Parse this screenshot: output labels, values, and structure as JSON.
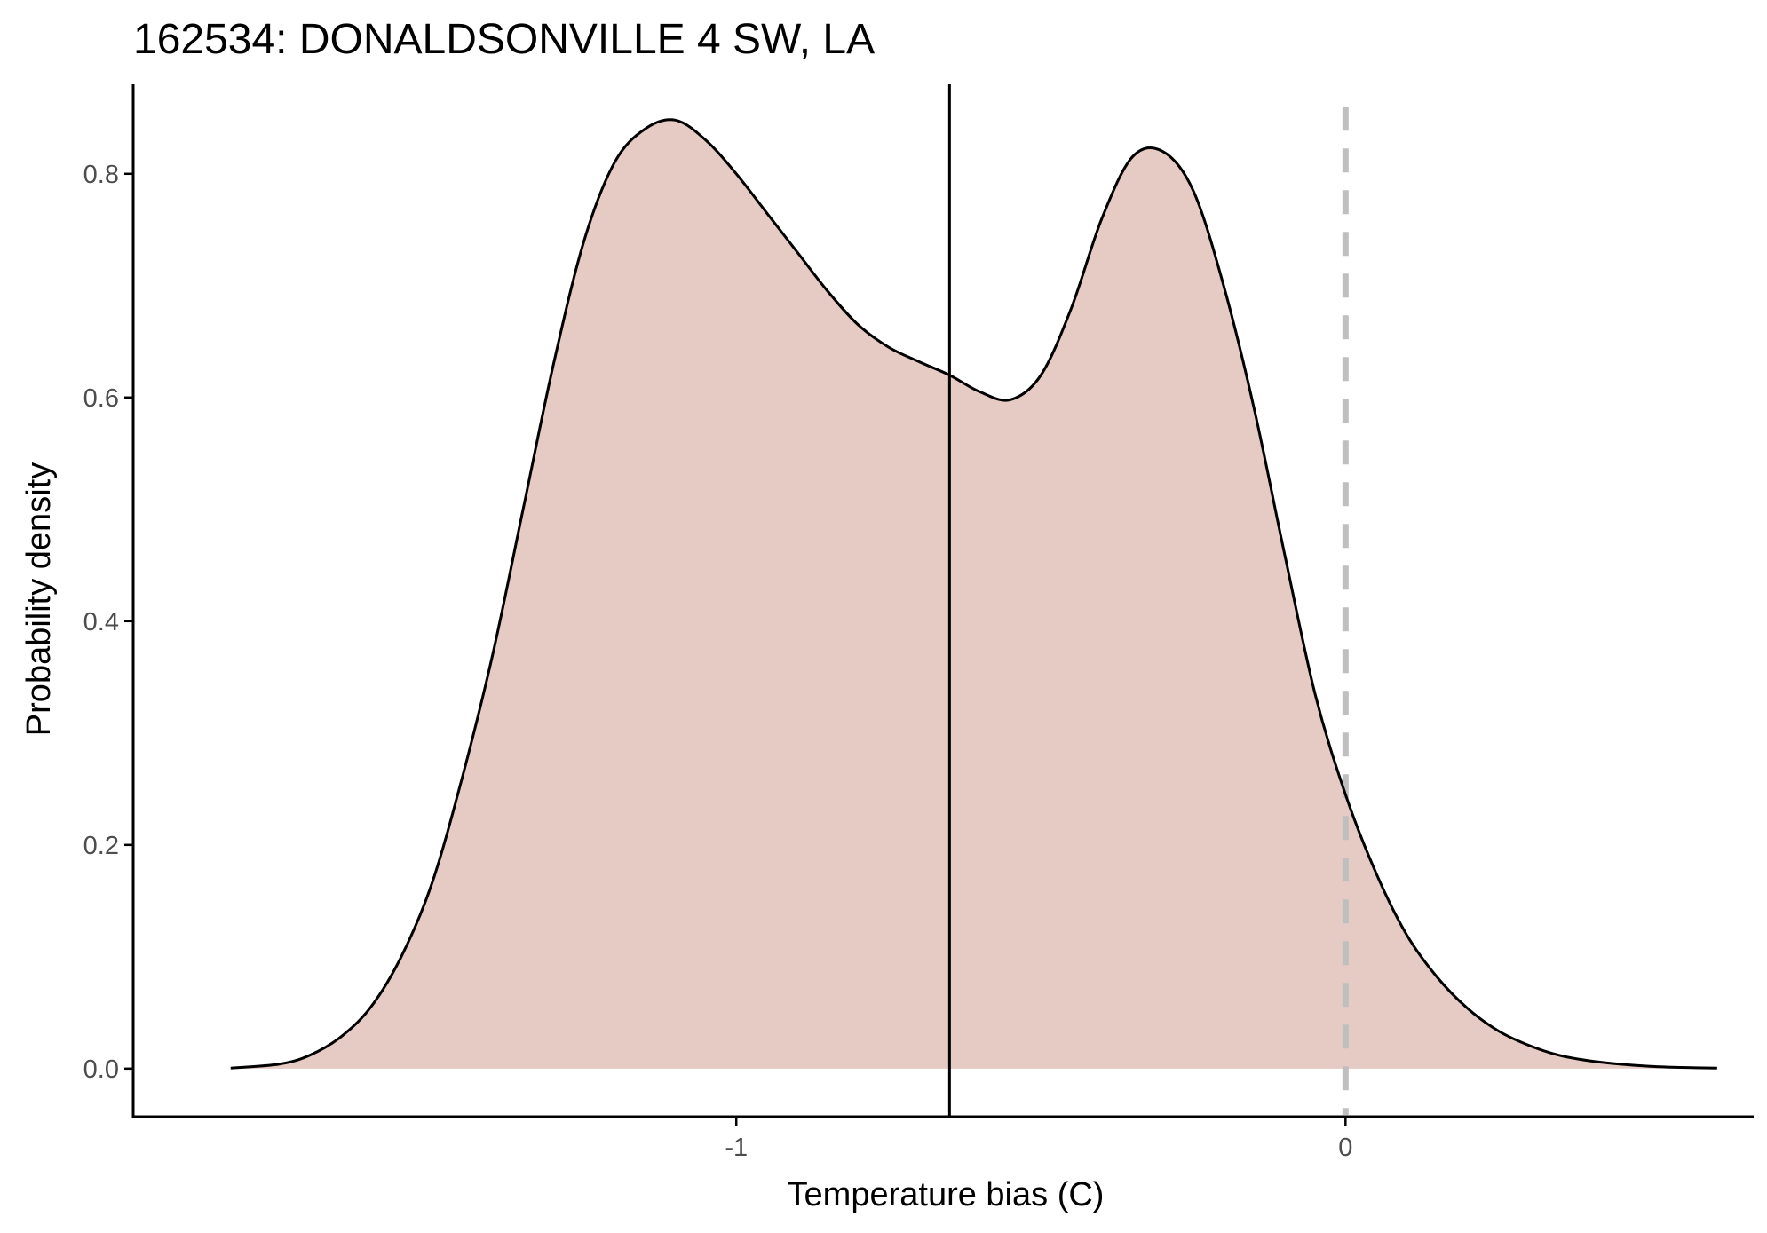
{
  "chart_data": {
    "type": "area",
    "title": "162534: DONALDSONVILLE 4 SW, LA",
    "xlabel": "Temperature bias (C)",
    "ylabel": "Probability density",
    "xlim": [
      -1.99,
      0.67
    ],
    "ylim": [
      -0.043,
      0.88
    ],
    "x_ticks": [
      {
        "value": -1,
        "label": "-1"
      },
      {
        "value": 0,
        "label": "0"
      }
    ],
    "y_ticks": [
      {
        "value": 0.0,
        "label": "0.0"
      },
      {
        "value": 0.2,
        "label": "0.2"
      },
      {
        "value": 0.4,
        "label": "0.4"
      },
      {
        "value": 0.6,
        "label": "0.6"
      },
      {
        "value": 0.8,
        "label": "0.8"
      }
    ],
    "grid": false,
    "legend": "none",
    "series": [
      {
        "x": [
          -1.83,
          -1.75,
          -1.7,
          -1.65,
          -1.6,
          -1.55,
          -1.5,
          -1.45,
          -1.4,
          -1.35,
          -1.3,
          -1.25,
          -1.2,
          -1.15,
          -1.1,
          -1.05,
          -1.0,
          -0.95,
          -0.9,
          -0.85,
          -0.8,
          -0.75,
          -0.7,
          -0.65,
          -0.6,
          -0.55,
          -0.5,
          -0.45,
          -0.4,
          -0.35,
          -0.3,
          -0.25,
          -0.2,
          -0.15,
          -0.1,
          -0.05,
          0.0,
          0.05,
          0.1,
          0.15,
          0.2,
          0.25,
          0.3,
          0.35,
          0.4,
          0.45,
          0.5,
          0.55,
          0.61
        ],
        "y": [
          0.0005,
          0.004,
          0.012,
          0.028,
          0.055,
          0.1,
          0.165,
          0.26,
          0.37,
          0.5,
          0.63,
          0.74,
          0.81,
          0.84,
          0.848,
          0.83,
          0.8,
          0.765,
          0.73,
          0.695,
          0.665,
          0.645,
          0.632,
          0.62,
          0.605,
          0.598,
          0.62,
          0.68,
          0.76,
          0.815,
          0.82,
          0.785,
          0.7,
          0.59,
          0.46,
          0.335,
          0.245,
          0.175,
          0.12,
          0.082,
          0.054,
          0.034,
          0.021,
          0.012,
          0.007,
          0.004,
          0.002,
          0.001,
          0.0005
        ]
      }
    ],
    "vlines": [
      {
        "x": -0.65,
        "style": "solid"
      },
      {
        "x": 0,
        "style": "dashed"
      }
    ],
    "colors": {
      "fill": "#e6cbc5",
      "curve": "#000000",
      "reference_line": "#000000",
      "zero_line": "#bfbfbf",
      "axis": "#000000",
      "tick_label": "#4d4d4d"
    }
  }
}
